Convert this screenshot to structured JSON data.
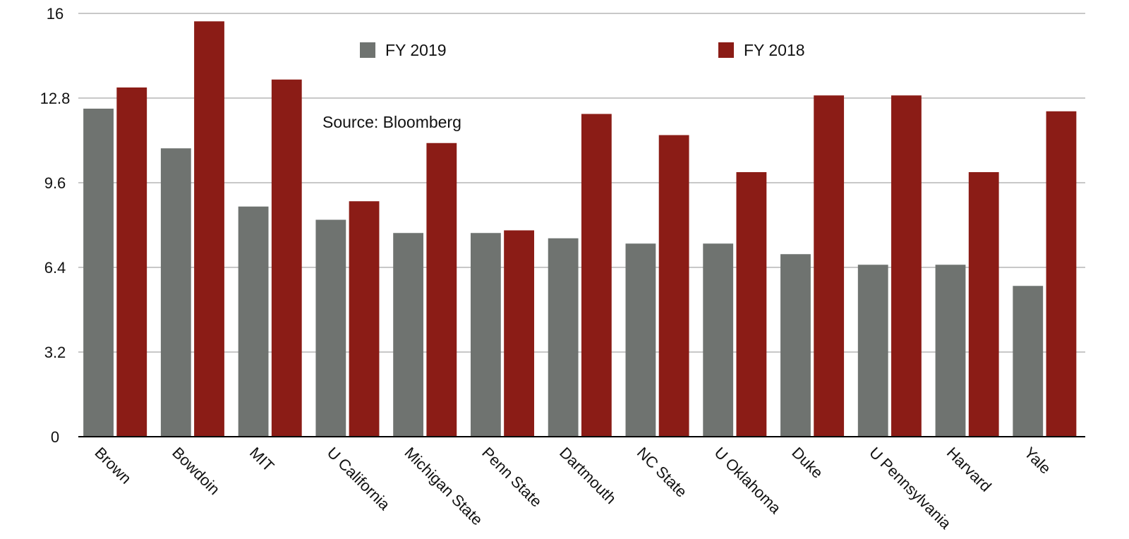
{
  "chart_data": {
    "type": "bar",
    "title": "",
    "xlabel": "",
    "ylabel": "",
    "ylim": [
      0,
      16
    ],
    "yticks": [
      "0",
      "3.2",
      "6.4",
      "9.6",
      "12.8",
      "16"
    ],
    "grid": true,
    "legend_position": "top",
    "annotation": "Source: Bloomberg",
    "categories": [
      "Brown",
      "Bowdoin",
      "MIT",
      "U California",
      "Michigan State",
      "Penn State",
      "Dartmouth",
      "NC State",
      "U Oklahoma",
      "Duke",
      "U Pennsylvania",
      "Harvard",
      "Yale"
    ],
    "series": [
      {
        "name": "FY 2019",
        "color": "#6f7370",
        "values": [
          12.4,
          10.9,
          8.7,
          8.2,
          7.7,
          7.7,
          7.5,
          7.3,
          7.3,
          6.9,
          6.5,
          6.5,
          5.7
        ]
      },
      {
        "name": "FY 2018",
        "color": "#8b1c16",
        "values": [
          13.2,
          15.7,
          13.5,
          8.9,
          11.1,
          7.8,
          12.2,
          11.4,
          10.0,
          12.9,
          12.9,
          10.0,
          12.3
        ]
      }
    ]
  }
}
